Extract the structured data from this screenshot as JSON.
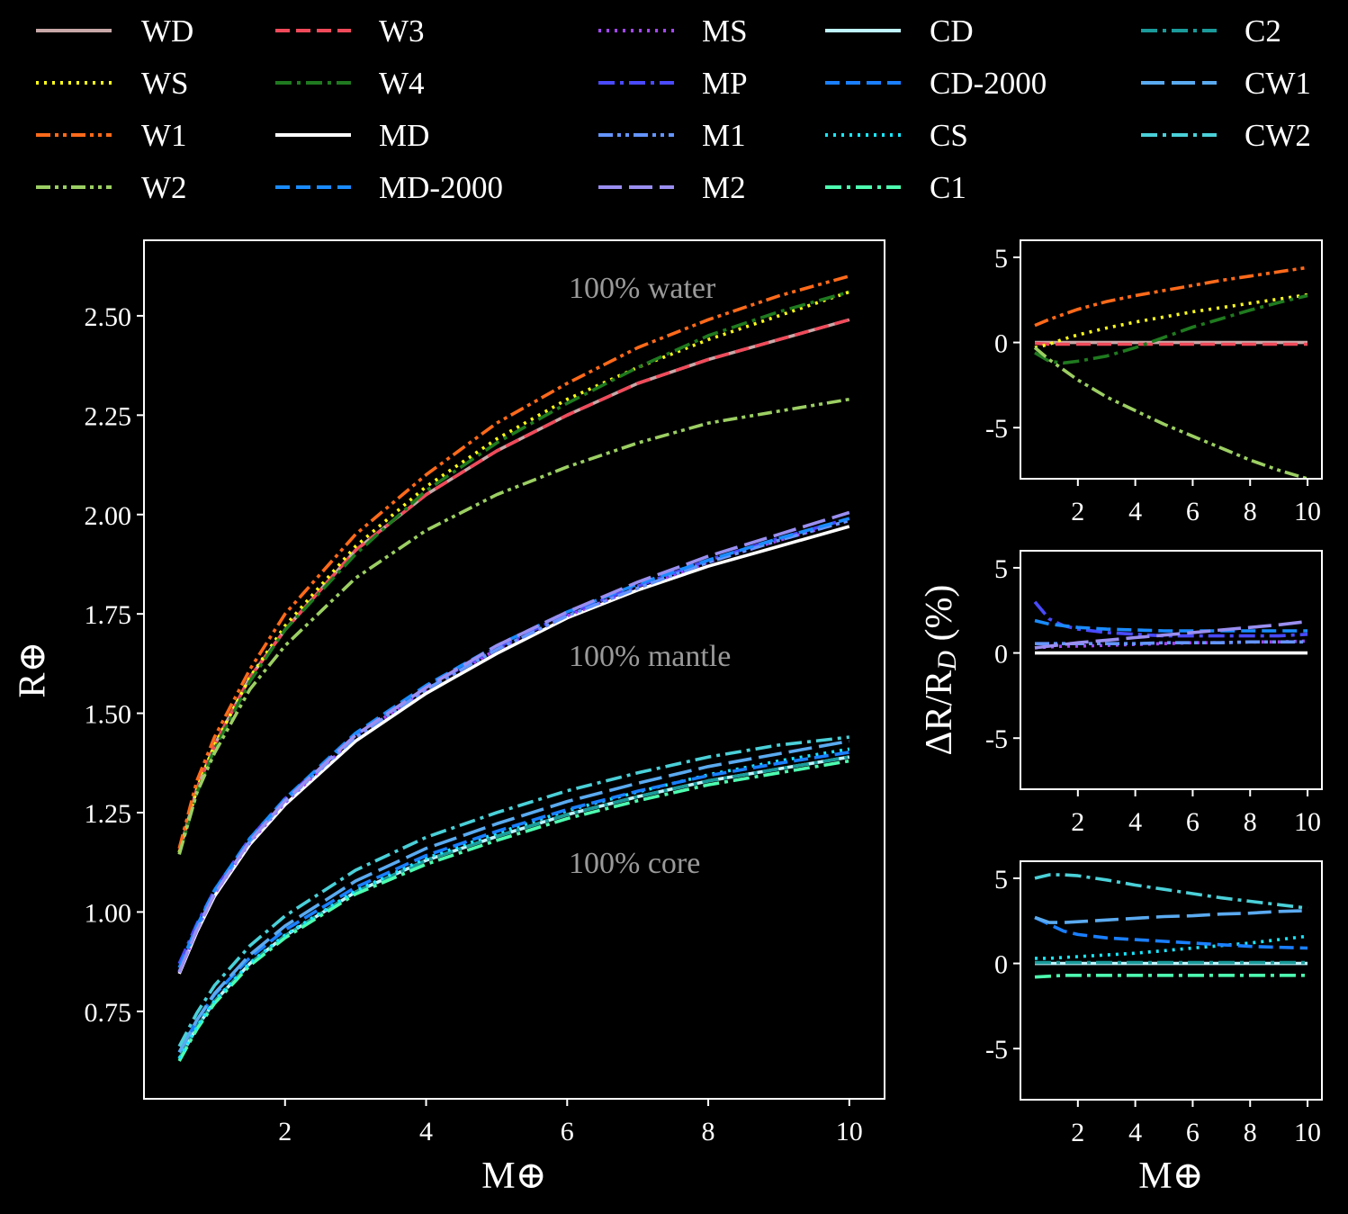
{
  "legend": [
    {
      "key": "WD",
      "label": "WD",
      "color": "#c8a8a8",
      "dash": "solid"
    },
    {
      "key": "WS",
      "label": "WS",
      "color": "#ffff1a",
      "dash": "dot"
    },
    {
      "key": "W1",
      "label": "W1",
      "color": "#ff6a1a",
      "dash": "dashdotdot"
    },
    {
      "key": "W2",
      "label": "W2",
      "color": "#9ccf63",
      "dash": "dashdotdot"
    },
    {
      "key": "W3",
      "label": "W3",
      "color": "#f04a5a",
      "dash": "dash"
    },
    {
      "key": "W4",
      "label": "W4",
      "color": "#1f7a1f",
      "dash": "dashdot"
    },
    {
      "key": "MD",
      "label": "MD",
      "color": "#ffffff",
      "dash": "solid"
    },
    {
      "key": "MD-2000",
      "label": "MD-2000",
      "color": "#1a8cff",
      "dash": "dash"
    },
    {
      "key": "MS",
      "label": "MS",
      "color": "#a347ff",
      "dash": "dot"
    },
    {
      "key": "MP",
      "label": "MP",
      "color": "#4a4aff",
      "dash": "dashdot"
    },
    {
      "key": "M1",
      "label": "M1",
      "color": "#6495ff",
      "dash": "dashdotdot"
    },
    {
      "key": "M2",
      "label": "M2",
      "color": "#9a8ef0",
      "dash": "longdash"
    },
    {
      "key": "CD",
      "label": "CD",
      "color": "#bff5ff",
      "dash": "solid"
    },
    {
      "key": "CD-2000",
      "label": "CD-2000",
      "color": "#1a7fff",
      "dash": "dash"
    },
    {
      "key": "CS",
      "label": "CS",
      "color": "#1ae6ff",
      "dash": "dot"
    },
    {
      "key": "C1",
      "label": "C1",
      "color": "#4dffb0",
      "dash": "dashdot"
    },
    {
      "key": "C2",
      "label": "C2",
      "color": "#1a9a9a",
      "dash": "dashdot"
    },
    {
      "key": "CW1",
      "label": "CW1",
      "color": "#5aaaf0",
      "dash": "longdash"
    },
    {
      "key": "CW2",
      "label": "CW2",
      "color": "#4ad0d8",
      "dash": "dashdot"
    }
  ],
  "annotations": {
    "water": "100% water",
    "mantle": "100% mantle",
    "core": "100% core"
  },
  "chart_data": [
    {
      "type": "line",
      "id": "main",
      "xlabel": "M⊕",
      "ylabel": "R⊕",
      "xlim": [
        0,
        10.5
      ],
      "ylim": [
        0.53,
        2.69
      ],
      "xticks": [
        2,
        4,
        6,
        8,
        10
      ],
      "yticks": [
        0.75,
        1.0,
        1.25,
        1.5,
        1.75,
        2.0,
        2.25,
        2.5
      ],
      "yticklabels": [
        "0.75",
        "1.00",
        "1.25",
        "1.50",
        "1.75",
        "2.00",
        "2.25",
        "2.50"
      ],
      "x": [
        0.5,
        0.75,
        1,
        1.5,
        2,
        3,
        4,
        5,
        6,
        7,
        8,
        9,
        10
      ],
      "series": [
        {
          "key": "WD",
          "values": [
            1.15,
            1.31,
            1.42,
            1.59,
            1.71,
            1.91,
            2.05,
            2.16,
            2.25,
            2.33,
            2.39,
            2.44,
            2.49
          ]
        },
        {
          "key": "W3",
          "values": [
            1.15,
            1.31,
            1.42,
            1.59,
            1.71,
            1.91,
            2.05,
            2.16,
            2.25,
            2.33,
            2.39,
            2.44,
            2.49
          ]
        },
        {
          "key": "WS",
          "values": [
            1.15,
            1.31,
            1.42,
            1.59,
            1.72,
            1.92,
            2.07,
            2.19,
            2.29,
            2.37,
            2.44,
            2.5,
            2.56
          ]
        },
        {
          "key": "W4",
          "values": [
            1.145,
            1.3,
            1.41,
            1.58,
            1.71,
            1.9,
            2.06,
            2.18,
            2.28,
            2.37,
            2.45,
            2.51,
            2.56
          ]
        },
        {
          "key": "W1",
          "values": [
            1.16,
            1.33,
            1.44,
            1.61,
            1.75,
            1.95,
            2.1,
            2.23,
            2.33,
            2.42,
            2.49,
            2.55,
            2.6
          ]
        },
        {
          "key": "W2",
          "values": [
            1.145,
            1.3,
            1.4,
            1.56,
            1.67,
            1.84,
            1.96,
            2.05,
            2.12,
            2.18,
            2.23,
            2.26,
            2.29
          ]
        },
        {
          "key": "MD",
          "values": [
            0.845,
            0.95,
            1.04,
            1.17,
            1.27,
            1.43,
            1.55,
            1.65,
            1.74,
            1.81,
            1.87,
            1.92,
            1.97
          ]
        },
        {
          "key": "MS",
          "values": [
            0.848,
            0.955,
            1.045,
            1.175,
            1.275,
            1.44,
            1.56,
            1.66,
            1.745,
            1.815,
            1.88,
            1.935,
            1.985
          ]
        },
        {
          "key": "MP",
          "values": [
            0.87,
            0.97,
            1.055,
            1.185,
            1.285,
            1.445,
            1.565,
            1.665,
            1.75,
            1.82,
            1.885,
            1.94,
            1.99
          ]
        },
        {
          "key": "M1",
          "values": [
            0.85,
            0.958,
            1.048,
            1.178,
            1.278,
            1.44,
            1.56,
            1.66,
            1.745,
            1.815,
            1.88,
            1.935,
            1.985
          ]
        },
        {
          "key": "MD-2000",
          "values": [
            0.86,
            0.965,
            1.055,
            1.185,
            1.285,
            1.45,
            1.57,
            1.67,
            1.755,
            1.825,
            1.885,
            1.94,
            1.99
          ]
        },
        {
          "key": "M2",
          "values": [
            0.848,
            0.955,
            1.045,
            1.178,
            1.28,
            1.445,
            1.565,
            1.67,
            1.755,
            1.83,
            1.895,
            1.95,
            2.005
          ]
        },
        {
          "key": "CD",
          "values": [
            0.63,
            0.71,
            0.775,
            0.87,
            0.94,
            1.05,
            1.13,
            1.19,
            1.245,
            1.29,
            1.33,
            1.36,
            1.39
          ]
        },
        {
          "key": "C2",
          "values": [
            0.63,
            0.71,
            0.775,
            0.87,
            0.94,
            1.05,
            1.13,
            1.19,
            1.245,
            1.29,
            1.33,
            1.36,
            1.39
          ]
        },
        {
          "key": "C1",
          "values": [
            0.625,
            0.705,
            0.77,
            0.865,
            0.935,
            1.045,
            1.12,
            1.18,
            1.235,
            1.28,
            1.32,
            1.35,
            1.38
          ]
        },
        {
          "key": "CS",
          "values": [
            0.632,
            0.712,
            0.777,
            0.872,
            0.942,
            1.053,
            1.135,
            1.198,
            1.255,
            1.302,
            1.345,
            1.38,
            1.41
          ]
        },
        {
          "key": "CD-2000",
          "values": [
            0.647,
            0.727,
            0.792,
            0.885,
            0.955,
            1.062,
            1.142,
            1.203,
            1.258,
            1.304,
            1.343,
            1.374,
            1.402
          ]
        },
        {
          "key": "CW1",
          "values": [
            0.647,
            0.728,
            0.795,
            0.892,
            0.965,
            1.078,
            1.16,
            1.222,
            1.278,
            1.324,
            1.366,
            1.398,
            1.43
          ]
        },
        {
          "key": "CW2",
          "values": [
            0.662,
            0.746,
            0.815,
            0.915,
            0.99,
            1.105,
            1.188,
            1.25,
            1.305,
            1.35,
            1.39,
            1.42,
            1.44
          ]
        }
      ]
    },
    {
      "type": "line",
      "id": "diff-water",
      "xlim": [
        0,
        10.5
      ],
      "ylim": [
        -8,
        6
      ],
      "xticks": [
        2,
        4,
        6,
        8,
        10
      ],
      "yticks": [
        -5,
        0,
        5
      ],
      "x": [
        0.5,
        1,
        1.5,
        2,
        3,
        4,
        5,
        6,
        7,
        8,
        9,
        10
      ],
      "series": [
        {
          "key": "WD",
          "values": [
            0,
            0,
            0,
            0,
            0,
            0,
            0,
            0,
            0,
            0,
            0,
            0
          ]
        },
        {
          "key": "W3",
          "values": [
            -0.05,
            -0.1,
            -0.1,
            -0.1,
            -0.1,
            -0.1,
            -0.1,
            -0.1,
            -0.1,
            -0.1,
            -0.1,
            -0.1
          ]
        },
        {
          "key": "WS",
          "values": [
            -0.3,
            -0.1,
            0.2,
            0.45,
            0.85,
            1.2,
            1.5,
            1.8,
            2.05,
            2.3,
            2.55,
            2.8
          ]
        },
        {
          "key": "W4",
          "values": [
            -0.6,
            -1.1,
            -1.2,
            -1.1,
            -0.8,
            -0.3,
            0.3,
            0.9,
            1.4,
            1.9,
            2.35,
            2.75
          ]
        },
        {
          "key": "W1",
          "values": [
            1.0,
            1.35,
            1.65,
            1.95,
            2.4,
            2.75,
            3.05,
            3.35,
            3.65,
            3.9,
            4.15,
            4.4
          ]
        },
        {
          "key": "W2",
          "values": [
            -0.3,
            -1.0,
            -1.6,
            -2.2,
            -3.2,
            -4.0,
            -4.8,
            -5.5,
            -6.2,
            -6.9,
            -7.5,
            -8.0
          ]
        }
      ]
    },
    {
      "type": "line",
      "id": "diff-mantle",
      "xlim": [
        0,
        10.5
      ],
      "ylim": [
        -8,
        6
      ],
      "xticks": [
        2,
        4,
        6,
        8,
        10
      ],
      "yticks": [
        -5,
        0,
        5
      ],
      "ylabel": "ΔR/R_D (%)",
      "x": [
        0.5,
        1,
        1.5,
        2,
        3,
        4,
        5,
        6,
        7,
        8,
        9,
        10
      ],
      "series": [
        {
          "key": "MD",
          "values": [
            0,
            0,
            0,
            0,
            0,
            0,
            0,
            0,
            0,
            0,
            0,
            0
          ]
        },
        {
          "key": "MS",
          "values": [
            0.3,
            0.35,
            0.4,
            0.4,
            0.45,
            0.5,
            0.55,
            0.6,
            0.6,
            0.65,
            0.65,
            0.7
          ]
        },
        {
          "key": "M1",
          "values": [
            0.55,
            0.55,
            0.55,
            0.55,
            0.55,
            0.55,
            0.6,
            0.6,
            0.6,
            0.65,
            0.65,
            0.65
          ]
        },
        {
          "key": "MP",
          "values": [
            3.0,
            2.0,
            1.6,
            1.4,
            1.2,
            1.1,
            1.0,
            1.0,
            1.0,
            1.0,
            1.0,
            1.1
          ]
        },
        {
          "key": "MD-2000",
          "values": [
            1.9,
            1.7,
            1.6,
            1.5,
            1.4,
            1.35,
            1.3,
            1.3,
            1.3,
            1.3,
            1.3,
            1.3
          ]
        },
        {
          "key": "M2",
          "values": [
            0.3,
            0.4,
            0.5,
            0.6,
            0.75,
            0.9,
            1.05,
            1.2,
            1.35,
            1.5,
            1.65,
            1.85
          ]
        }
      ]
    },
    {
      "type": "line",
      "id": "diff-core",
      "xlabel": "M⊕",
      "xlim": [
        0,
        10.5
      ],
      "ylim": [
        -8,
        6
      ],
      "xticks": [
        2,
        4,
        6,
        8,
        10
      ],
      "yticks": [
        -5,
        0,
        5
      ],
      "x": [
        0.5,
        1,
        1.5,
        2,
        3,
        4,
        5,
        6,
        7,
        8,
        9,
        10
      ],
      "series": [
        {
          "key": "CD",
          "values": [
            0,
            0,
            0,
            0,
            0,
            0,
            0,
            0,
            0,
            0,
            0,
            0
          ]
        },
        {
          "key": "C2",
          "values": [
            0.05,
            0.05,
            0.05,
            0.05,
            0.05,
            0.05,
            0.05,
            0.05,
            0.05,
            0.05,
            0.05,
            0.05
          ]
        },
        {
          "key": "C1",
          "values": [
            -0.8,
            -0.75,
            -0.7,
            -0.7,
            -0.7,
            -0.7,
            -0.7,
            -0.7,
            -0.7,
            -0.7,
            -0.7,
            -0.7
          ]
        },
        {
          "key": "CS",
          "values": [
            0.3,
            0.3,
            0.35,
            0.4,
            0.5,
            0.6,
            0.75,
            0.9,
            1.05,
            1.2,
            1.4,
            1.6
          ]
        },
        {
          "key": "CD-2000",
          "values": [
            2.7,
            2.3,
            1.9,
            1.7,
            1.5,
            1.4,
            1.3,
            1.2,
            1.1,
            1.0,
            0.95,
            0.9
          ]
        },
        {
          "key": "CW1",
          "values": [
            2.7,
            2.4,
            2.4,
            2.45,
            2.55,
            2.65,
            2.75,
            2.8,
            2.9,
            2.95,
            3.05,
            3.1
          ]
        },
        {
          "key": "CW2",
          "values": [
            5.0,
            5.2,
            5.2,
            5.15,
            4.9,
            4.6,
            4.35,
            4.1,
            3.85,
            3.65,
            3.45,
            3.25
          ]
        }
      ]
    }
  ]
}
